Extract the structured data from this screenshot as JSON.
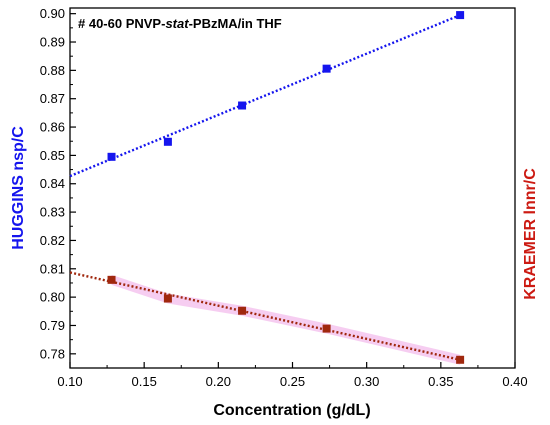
{
  "chart_data": {
    "type": "scatter",
    "title_parts": [
      "# 40-60 PNVP-",
      "stat",
      "-PBzMA/in THF"
    ],
    "xlabel": "Concentration (g/dL)",
    "ylabel_left": "HUGGINS nsp/C",
    "ylabel_right": "KRAEMER lnnr/C",
    "xlim": [
      0.1,
      0.4
    ],
    "ylim": [
      0.775,
      0.902
    ],
    "x_ticks": [
      "0.10",
      "0.15",
      "0.20",
      "0.25",
      "0.30",
      "0.35",
      "0.40"
    ],
    "y_ticks": [
      "0.78",
      "0.79",
      "0.80",
      "0.81",
      "0.82",
      "0.83",
      "0.84",
      "0.85",
      "0.86",
      "0.87",
      "0.88",
      "0.89",
      "0.90"
    ],
    "grid": false,
    "series": [
      {
        "name": "HUGGINS nsp/C",
        "color": "#1515ee",
        "marker": "square",
        "x": [
          0.128,
          0.166,
          0.216,
          0.273,
          0.363
        ],
        "y": [
          0.8495,
          0.8548,
          0.8676,
          0.8806,
          0.8995
        ],
        "fit": {
          "x": [
            0.1,
            0.363
          ],
          "y": [
            0.8427,
            0.8995
          ],
          "style": "dotted"
        }
      },
      {
        "name": "KRAEMER lnnr/C",
        "color": "#a0280e",
        "marker": "square",
        "error_band_color": "#f4c0ee",
        "x": [
          0.128,
          0.166,
          0.216,
          0.273,
          0.363
        ],
        "y": [
          0.8061,
          0.7995,
          0.7952,
          0.7889,
          0.7779
        ],
        "fit": {
          "x": [
            0.1,
            0.363
          ],
          "y": [
            0.8087,
            0.7779
          ],
          "style": "dotted"
        }
      }
    ]
  }
}
